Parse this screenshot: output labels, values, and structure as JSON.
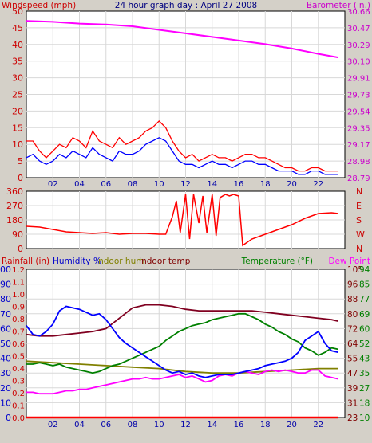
{
  "chart_data": [
    {
      "type": "line",
      "title": "24 hour graph day : April 27 2008",
      "ylabel_left": "Windspeed (mph)",
      "ylabel_right": "Barometer (in.)",
      "x_ticks": [
        "02",
        "04",
        "06",
        "08",
        "10",
        "12",
        "14",
        "16",
        "18",
        "20",
        "22"
      ],
      "xlim": [
        0,
        24
      ],
      "ylim_left": [
        0,
        50
      ],
      "y_ticks_left": [
        "0",
        "5",
        "10",
        "15",
        "20",
        "25",
        "30",
        "35",
        "40",
        "45",
        "50"
      ],
      "ylim_right": [
        28.79,
        30.66
      ],
      "y_ticks_right": [
        "28.79",
        "28.98",
        "29.17",
        "29.35",
        "29.54",
        "29.73",
        "29.91",
        "30.10",
        "30.29",
        "30.47",
        "30.66"
      ],
      "colors": {
        "gust": "#ff0000",
        "wind": "#0000ff",
        "barometer": "#ff00ff",
        "left_axis": "#cc0000",
        "right_axis": "#cc00cc",
        "title": "#000080"
      },
      "series": [
        {
          "key": "gust",
          "axis": "left",
          "x": [
            0,
            0.5,
            1,
            1.5,
            2,
            2.5,
            3,
            3.5,
            4,
            4.5,
            5,
            5.5,
            6,
            6.5,
            7,
            7.5,
            8,
            8.5,
            9,
            9.5,
            10,
            10.5,
            11,
            11.5,
            12,
            12.5,
            13,
            13.5,
            14,
            14.5,
            15,
            15.5,
            16,
            16.5,
            17,
            17.5,
            18,
            18.5,
            19,
            19.5,
            20,
            20.5,
            21,
            21.5,
            22,
            22.5,
            23,
            23.5
          ],
          "values": [
            11,
            11,
            8,
            6,
            8,
            10,
            9,
            12,
            11,
            9,
            14,
            11,
            10,
            9,
            12,
            10,
            11,
            12,
            14,
            15,
            17,
            15,
            11,
            8,
            6,
            7,
            5,
            6,
            7,
            6,
            6,
            5,
            6,
            7,
            7,
            6,
            6,
            5,
            4,
            3,
            3,
            2,
            2,
            3,
            3,
            2,
            2,
            2
          ]
        },
        {
          "key": "wind",
          "axis": "left",
          "x": [
            0,
            0.5,
            1,
            1.5,
            2,
            2.5,
            3,
            3.5,
            4,
            4.5,
            5,
            5.5,
            6,
            6.5,
            7,
            7.5,
            8,
            8.5,
            9,
            9.5,
            10,
            10.5,
            11,
            11.5,
            12,
            12.5,
            13,
            13.5,
            14,
            14.5,
            15,
            15.5,
            16,
            16.5,
            17,
            17.5,
            18,
            18.5,
            19,
            19.5,
            20,
            20.5,
            21,
            21.5,
            22,
            22.5,
            23,
            23.5
          ],
          "values": [
            6,
            7,
            5,
            4,
            5,
            7,
            6,
            8,
            7,
            6,
            9,
            7,
            6,
            5,
            8,
            7,
            7,
            8,
            10,
            11,
            12,
            11,
            8,
            5,
            4,
            4,
            3,
            4,
            5,
            4,
            4,
            3,
            4,
            5,
            5,
            4,
            4,
            3,
            2,
            2,
            2,
            1,
            1,
            2,
            2,
            1,
            1,
            1
          ]
        },
        {
          "key": "barometer",
          "axis": "right",
          "x": [
            0,
            2,
            4,
            6,
            8,
            10,
            12,
            14,
            16,
            18,
            20,
            22,
            23.5
          ],
          "values": [
            30.55,
            30.54,
            30.52,
            30.51,
            30.49,
            30.45,
            30.41,
            30.37,
            30.33,
            30.29,
            30.24,
            30.18,
            30.14
          ]
        }
      ]
    },
    {
      "type": "line",
      "title": "",
      "ylabel_right": "N W S E N",
      "right_labels": [
        "N",
        "W",
        "S",
        "E",
        "N"
      ],
      "x_ticks": [
        "02",
        "04",
        "06",
        "08",
        "10",
        "12",
        "14",
        "16",
        "18",
        "20",
        "22"
      ],
      "xlim": [
        0,
        24
      ],
      "ylim_left": [
        0,
        360
      ],
      "y_ticks_left": [
        "0",
        "90",
        "180",
        "270",
        "360"
      ],
      "colors": {
        "direction": "#ff0000",
        "left_axis": "#cc0000",
        "right_axis": "#cc0000"
      },
      "series": [
        {
          "key": "direction",
          "axis": "left",
          "x": [
            0,
            1,
            2,
            3,
            4,
            5,
            6,
            7,
            8,
            9,
            10,
            10.5,
            11,
            11.3,
            11.6,
            12,
            12.3,
            12.6,
            13,
            13.3,
            13.6,
            14,
            14.3,
            14.6,
            15,
            15.3,
            15.6,
            16,
            16.3,
            17,
            18,
            19,
            20,
            21,
            22,
            23,
            23.5
          ],
          "values": [
            140,
            135,
            120,
            105,
            100,
            95,
            100,
            90,
            95,
            95,
            90,
            90,
            200,
            300,
            100,
            340,
            60,
            340,
            160,
            330,
            100,
            340,
            80,
            320,
            340,
            330,
            340,
            330,
            20,
            60,
            90,
            120,
            150,
            190,
            220,
            225,
            220
          ]
        }
      ]
    },
    {
      "type": "line",
      "title": "",
      "legend": [
        "Rainfall (in)",
        "Humidity %",
        "Indoor hum",
        "Indoor temp",
        "Temperature (°F)",
        "Dew Point"
      ],
      "x_ticks": [
        "02",
        "04",
        "06",
        "08",
        "10",
        "12",
        "14",
        "16",
        "18",
        "20",
        "22"
      ],
      "xlim": [
        0,
        24
      ],
      "ylim_humidity": [
        0,
        100
      ],
      "y_ticks_humidity": [
        "0",
        "10",
        "20",
        "30",
        "40",
        "50",
        "60",
        "70",
        "80",
        "90",
        "100"
      ],
      "ylim_rain": [
        0,
        1.2
      ],
      "y_ticks_rain": [
        "0.0",
        "0.1",
        "0.2",
        "0.3",
        "0.4",
        "0.5",
        "0.6",
        "0.7",
        "0.8",
        "0.9",
        "1.0",
        "1.1",
        "1.2"
      ],
      "ylim_indoor_temp": [
        23,
        113
      ],
      "y_ticks_indoor_temp": [
        "23",
        "31",
        "39",
        "47",
        "55",
        "64",
        "72",
        "80",
        "88",
        "96",
        "105"
      ],
      "ylim_temp": [
        10,
        94
      ],
      "y_ticks_temp": [
        "10",
        "18",
        "27",
        "35",
        "43",
        "52",
        "60",
        "69",
        "77",
        "85",
        "94"
      ],
      "colors": {
        "rain": "#ff0000",
        "humidity": "#0000ff",
        "indoor_hum": "#808000",
        "indoor_temp": "#800020",
        "temperature": "#008000",
        "dew_point": "#ff00ff",
        "rain_axis": "#cc0000",
        "humidity_axis": "#0000cc",
        "indoor_hum_axis": "#808000",
        "indoor_temp_axis": "#800000",
        "temp_axis": "#008000"
      },
      "series": [
        {
          "key": "rain",
          "axis": "rain",
          "x": [
            0,
            23.5
          ],
          "values": [
            0,
            0
          ]
        },
        {
          "key": "humidity",
          "axis": "humidity",
          "x": [
            0,
            0.5,
            1,
            1.5,
            2,
            2.5,
            3,
            3.5,
            4,
            4.5,
            5,
            5.5,
            6,
            6.5,
            7,
            7.5,
            8,
            8.5,
            9,
            9.5,
            10,
            10.5,
            11,
            11.5,
            12,
            12.5,
            13,
            13.5,
            14,
            14.5,
            15,
            15.5,
            16,
            16.5,
            17,
            17.5,
            18,
            18.5,
            19,
            19.5,
            20,
            20.5,
            21,
            21.5,
            22,
            22.5,
            23,
            23.5
          ],
          "values": [
            62,
            56,
            55,
            58,
            63,
            72,
            75,
            74,
            73,
            71,
            69,
            70,
            66,
            60,
            54,
            50,
            47,
            44,
            41,
            38,
            35,
            32,
            30,
            31,
            29,
            30,
            28,
            27,
            28,
            29,
            29,
            29,
            30,
            31,
            32,
            33,
            35,
            36,
            37,
            38,
            40,
            44,
            52,
            55,
            58,
            50,
            45,
            44
          ]
        },
        {
          "key": "indoor_hum",
          "axis": "humidity",
          "x": [
            0,
            2,
            4,
            6,
            8,
            10,
            12,
            14,
            16,
            18,
            20,
            22,
            23.5
          ],
          "values": [
            38,
            37,
            36,
            35,
            34,
            33,
            31,
            30,
            30,
            31,
            32,
            33,
            33
          ]
        },
        {
          "key": "indoor_temp",
          "axis": "humidity",
          "x": [
            0,
            1,
            2,
            3,
            4,
            5,
            6,
            7,
            8,
            9,
            10,
            11,
            12,
            13,
            14,
            15,
            16,
            17,
            18,
            19,
            20,
            21,
            22,
            23,
            23.5
          ],
          "values": [
            56,
            55,
            55,
            56,
            57,
            58,
            60,
            67,
            74,
            76,
            76,
            75,
            73,
            72,
            72,
            72,
            72,
            72,
            71,
            70,
            69,
            68,
            67,
            66,
            65
          ]
        },
        {
          "key": "temperature",
          "axis": "humidity",
          "x": [
            0,
            0.5,
            1,
            1.5,
            2,
            2.5,
            3,
            3.5,
            4,
            4.5,
            5,
            5.5,
            6,
            6.5,
            7,
            7.5,
            8,
            8.5,
            9,
            9.5,
            10,
            10.5,
            11,
            11.5,
            12,
            12.5,
            13,
            13.5,
            14,
            14.5,
            15,
            15.5,
            16,
            16.5,
            17,
            17.5,
            18,
            18.5,
            19,
            19.5,
            20,
            20.5,
            21,
            21.5,
            22,
            22.5,
            23,
            23.5
          ],
          "values": [
            36,
            36,
            37,
            36,
            35,
            36,
            34,
            33,
            32,
            31,
            30,
            31,
            33,
            35,
            36,
            38,
            40,
            42,
            44,
            46,
            48,
            52,
            55,
            58,
            60,
            62,
            63,
            64,
            66,
            67,
            68,
            69,
            70,
            70,
            68,
            66,
            63,
            61,
            58,
            56,
            53,
            51,
            47,
            45,
            42,
            44,
            47,
            46
          ]
        },
        {
          "key": "dew_point",
          "axis": "humidity",
          "x": [
            0,
            0.5,
            1,
            1.5,
            2,
            2.5,
            3,
            3.5,
            4,
            4.5,
            5,
            5.5,
            6,
            6.5,
            7,
            7.5,
            8,
            8.5,
            9,
            9.5,
            10,
            10.5,
            11,
            11.5,
            12,
            12.5,
            13,
            13.5,
            14,
            14.5,
            15,
            15.5,
            16,
            16.5,
            17,
            17.5,
            18,
            18.5,
            19,
            19.5,
            20,
            20.5,
            21,
            21.5,
            22,
            22.5,
            23,
            23.5
          ],
          "values": [
            17,
            17,
            16,
            16,
            16,
            17,
            18,
            18,
            19,
            19,
            20,
            21,
            22,
            23,
            24,
            25,
            26,
            26,
            27,
            26,
            26,
            27,
            28,
            29,
            27,
            28,
            26,
            24,
            25,
            28,
            29,
            28,
            30,
            31,
            30,
            29,
            31,
            32,
            31,
            32,
            31,
            30,
            30,
            32,
            32,
            28,
            27,
            26
          ]
        }
      ]
    }
  ]
}
